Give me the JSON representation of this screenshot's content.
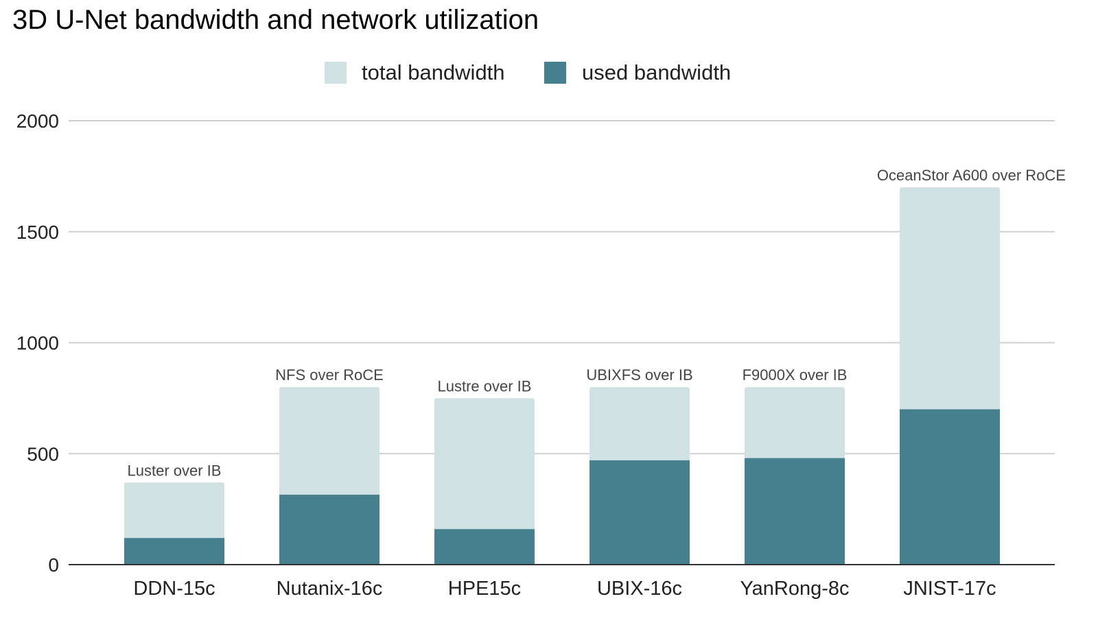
{
  "chart_data": {
    "type": "bar",
    "stacked": false,
    "overlaid": true,
    "title": "3D U-Net bandwidth and network utilization",
    "xlabel": "",
    "ylabel": "",
    "ylim": [
      0,
      2000
    ],
    "yticks": [
      0,
      500,
      1000,
      1500,
      2000
    ],
    "grid": true,
    "legend_position": "top",
    "categories": [
      "DDN-15c",
      "Nutanix-16c",
      "HPE15c",
      "UBIX-16c",
      "YanRong-8c",
      "JNIST-17c"
    ],
    "annotations": [
      "Luster over IB",
      "NFS over RoCE",
      "Lustre over IB",
      "UBIXFS over IB",
      "F9000X over IB",
      "OceanStor A600 over RoCE"
    ],
    "series": [
      {
        "name": "total bandwidth",
        "color": "#d0e1e4",
        "values": [
          370,
          800,
          750,
          800,
          800,
          1700
        ]
      },
      {
        "name": "used bandwidth",
        "color": "#46808e",
        "values": [
          120,
          315,
          160,
          470,
          480,
          700
        ]
      }
    ]
  }
}
